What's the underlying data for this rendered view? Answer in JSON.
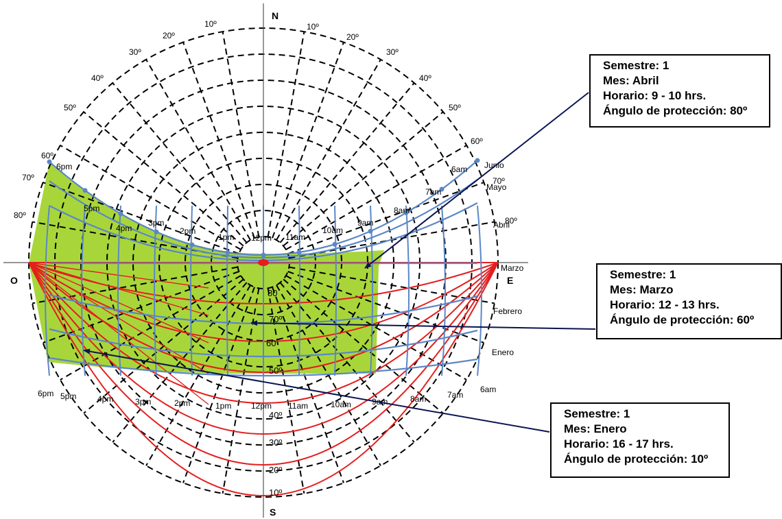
{
  "cardinals": {
    "north": "N",
    "south": "S",
    "west": "O",
    "east": "E"
  },
  "azimuth_labels_left": [
    "10º",
    "20º",
    "30º",
    "40º",
    "50º",
    "60º",
    "70º",
    "80º"
  ],
  "azimuth_labels_right": [
    "10º",
    "20º",
    "30º",
    "40º",
    "50º",
    "60º",
    "70º",
    "80º"
  ],
  "altitude_labels": [
    "80",
    "70º",
    "60",
    "50º",
    "40º",
    "30º",
    "20º",
    "10º"
  ],
  "summer_hours": [
    "6pm",
    "5pm",
    "4pm",
    "3pm",
    "2pm",
    "1pm",
    "12pm",
    "11am",
    "10am",
    "9am",
    "8am",
    "7am",
    "6am"
  ],
  "winter_hours": [
    "6pm",
    "5pm",
    "4pm",
    "3pm",
    "2pm",
    "1pm",
    "12pm",
    "11am",
    "10am",
    "9am",
    "8am",
    "7am",
    "6am"
  ],
  "month_labels": [
    "Junio",
    "Mayo",
    "Abril",
    "Marzo",
    "Febrero",
    "Enero"
  ],
  "colors": {
    "grid": "#000000",
    "sun_path": "#5b87c6",
    "shadow_arc": "#e41e1e",
    "shade": "#a8d63a",
    "arrow": "#0a1450"
  },
  "annotations": [
    {
      "semestre": "Semestre: 1",
      "mes": "Mes: Abril",
      "horario": "Horario: 9 - 10 hrs.",
      "angulo": "Ángulo de protección: 80º"
    },
    {
      "semestre": "Semestre: 1",
      "mes": "Mes: Marzo",
      "horario": "Horario: 12 - 13 hrs.",
      "angulo": "Ángulo de protección: 60º"
    },
    {
      "semestre": "Semestre: 1",
      "mes": "Mes: Enero",
      "horario": "Horario: 16 - 17 hrs.",
      "angulo": "Ángulo de protección: 10º"
    }
  ]
}
